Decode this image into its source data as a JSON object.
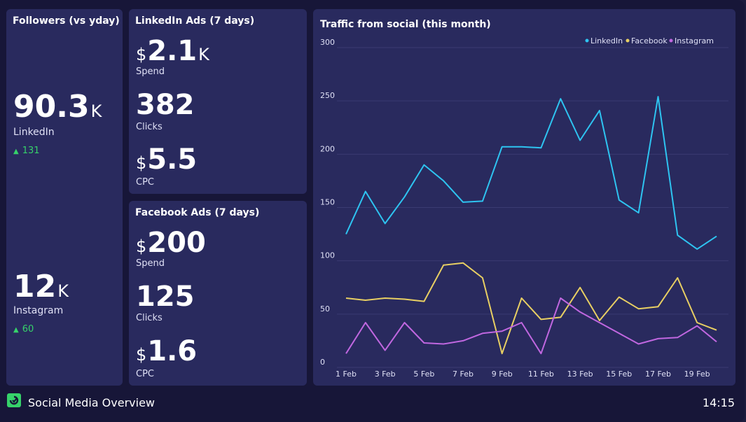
{
  "followers": {
    "title": "Followers (vs yday)",
    "linkedin": {
      "value": "90.3",
      "unit": "K",
      "label": "LinkedIn",
      "delta": "131"
    },
    "instagram": {
      "value": "12",
      "unit": "K",
      "label": "Instagram",
      "delta": "60"
    }
  },
  "linkedin_ads": {
    "title": "LinkedIn Ads (7 days)",
    "spend": {
      "prefix": "$",
      "value": "2.1",
      "unit": "K",
      "label": "Spend"
    },
    "clicks": {
      "value": "382",
      "label": "Clicks"
    },
    "cpc": {
      "prefix": "$",
      "value": "5.5",
      "label": "CPC"
    }
  },
  "facebook_ads": {
    "title": "Facebook Ads (7 days)",
    "spend": {
      "prefix": "$",
      "value": "200",
      "label": "Spend"
    },
    "clicks": {
      "value": "125",
      "label": "Clicks"
    },
    "cpc": {
      "prefix": "$",
      "value": "1.6",
      "label": "CPC"
    }
  },
  "footer": {
    "title": "Social Media Overview",
    "time": "14:15"
  },
  "colors": {
    "linkedin": "#2ec4f1",
    "facebook": "#e8cf63",
    "instagram": "#c067e0",
    "positive": "#36d26a"
  },
  "chart_data": {
    "type": "line",
    "title": "Traffic from social (this month)",
    "xlabel": "",
    "ylabel": "",
    "x": [
      "1 Feb",
      "2 Feb",
      "3 Feb",
      "4 Feb",
      "5 Feb",
      "6 Feb",
      "7 Feb",
      "8 Feb",
      "9 Feb",
      "10 Feb",
      "11 Feb",
      "12 Feb",
      "13 Feb",
      "14 Feb",
      "15 Feb",
      "16 Feb",
      "17 Feb",
      "18 Feb",
      "19 Feb",
      "20 Feb"
    ],
    "x_ticks": [
      "1 Feb",
      "3 Feb",
      "5 Feb",
      "7 Feb",
      "9 Feb",
      "11 Feb",
      "13 Feb",
      "15 Feb",
      "17 Feb",
      "19 Feb"
    ],
    "y_ticks": [
      0,
      50,
      100,
      150,
      200,
      250,
      300
    ],
    "ylim": [
      0,
      300
    ],
    "legend_position": "top-right",
    "grid": true,
    "series": [
      {
        "name": "LinkedIn",
        "color": "#2ec4f1",
        "values": [
          125,
          165,
          135,
          160,
          190,
          175,
          155,
          156,
          207,
          207,
          206,
          252,
          213,
          241,
          157,
          145,
          254,
          124,
          111,
          123
        ]
      },
      {
        "name": "Facebook",
        "color": "#e8cf63",
        "values": [
          65,
          63,
          65,
          64,
          62,
          96,
          98,
          84,
          13,
          65,
          45,
          47,
          75,
          44,
          66,
          55,
          57,
          84,
          42,
          35
        ]
      },
      {
        "name": "Instagram",
        "color": "#c067e0",
        "values": [
          13,
          42,
          16,
          42,
          23,
          22,
          25,
          32,
          34,
          42,
          13,
          65,
          52,
          42,
          32,
          22,
          27,
          28,
          39,
          24
        ]
      }
    ]
  }
}
